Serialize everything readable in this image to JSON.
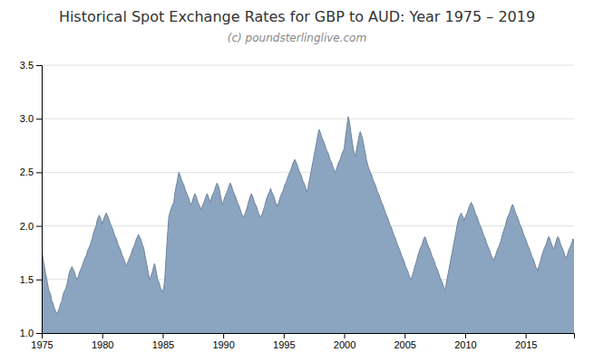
{
  "chart_data": {
    "type": "area",
    "title": "Historical Spot Exchange Rates for GBP to AUD: Year 1975 – 2019",
    "subtitle": "(c) poundsterlinglive.com",
    "color": "#8ba4c0",
    "grid": true,
    "xlim": [
      1975,
      2019
    ],
    "ylim": [
      1.0,
      3.5
    ],
    "xticks": [
      1975,
      1980,
      1985,
      1990,
      1995,
      2000,
      2005,
      2010,
      2015
    ],
    "yticks": [
      {
        "value": 1.0,
        "label": "1.0"
      },
      1.5,
      {
        "value": 2.0,
        "label": "2.0"
      },
      2.5,
      {
        "value": 3.0,
        "label": "3.0"
      },
      3.5
    ],
    "x": [
      1975.0,
      1975.08,
      1975.17,
      1975.25,
      1975.33,
      1975.42,
      1975.5,
      1975.58,
      1975.67,
      1975.75,
      1975.83,
      1975.92,
      1976.0,
      1976.08,
      1976.17,
      1976.25,
      1976.33,
      1976.42,
      1976.5,
      1976.58,
      1976.67,
      1976.75,
      1976.83,
      1976.92,
      1977.0,
      1977.08,
      1977.17,
      1977.25,
      1977.33,
      1977.42,
      1977.5,
      1977.58,
      1977.67,
      1977.75,
      1977.83,
      1977.92,
      1978.0,
      1978.08,
      1978.17,
      1978.25,
      1978.33,
      1978.42,
      1978.5,
      1978.58,
      1978.67,
      1978.75,
      1978.83,
      1978.92,
      1979.0,
      1979.08,
      1979.17,
      1979.25,
      1979.33,
      1979.42,
      1979.5,
      1979.58,
      1979.67,
      1979.75,
      1979.83,
      1979.92,
      1980.0,
      1980.08,
      1980.17,
      1980.25,
      1980.33,
      1980.42,
      1980.5,
      1980.58,
      1980.67,
      1980.75,
      1980.83,
      1980.92,
      1981.0,
      1981.08,
      1981.17,
      1981.25,
      1981.33,
      1981.42,
      1981.5,
      1981.58,
      1981.67,
      1981.75,
      1981.83,
      1981.92,
      1982.0,
      1982.08,
      1982.17,
      1982.25,
      1982.33,
      1982.42,
      1982.5,
      1982.58,
      1982.67,
      1982.75,
      1982.83,
      1982.92,
      1983.0,
      1983.08,
      1983.17,
      1983.25,
      1983.33,
      1983.42,
      1983.5,
      1983.58,
      1983.67,
      1983.75,
      1983.83,
      1983.92,
      1984.0,
      1984.08,
      1984.17,
      1984.25,
      1984.33,
      1984.42,
      1984.5,
      1984.58,
      1984.67,
      1984.75,
      1984.83,
      1984.92,
      1985.0,
      1985.08,
      1985.17,
      1985.25,
      1985.33,
      1985.42,
      1985.5,
      1985.58,
      1985.67,
      1985.75,
      1985.83,
      1985.92,
      1986.0,
      1986.08,
      1986.17,
      1986.25,
      1986.33,
      1986.42,
      1986.5,
      1986.58,
      1986.67,
      1986.75,
      1986.83,
      1986.92,
      1987.0,
      1987.08,
      1987.17,
      1987.25,
      1987.33,
      1987.42,
      1987.5,
      1987.58,
      1987.67,
      1987.75,
      1987.83,
      1987.92,
      1988.0,
      1988.08,
      1988.17,
      1988.25,
      1988.33,
      1988.42,
      1988.5,
      1988.58,
      1988.67,
      1988.75,
      1988.83,
      1988.92,
      1989.0,
      1989.08,
      1989.17,
      1989.25,
      1989.33,
      1989.42,
      1989.5,
      1989.58,
      1989.67,
      1989.75,
      1989.83,
      1989.92,
      1990.0,
      1990.08,
      1990.17,
      1990.25,
      1990.33,
      1990.42,
      1990.5,
      1990.58,
      1990.67,
      1990.75,
      1990.83,
      1990.92,
      1991.0,
      1991.08,
      1991.17,
      1991.25,
      1991.33,
      1991.42,
      1991.5,
      1991.58,
      1991.67,
      1991.75,
      1991.83,
      1991.92,
      1992.0,
      1992.08,
      1992.17,
      1992.25,
      1992.33,
      1992.42,
      1992.5,
      1992.58,
      1992.67,
      1992.75,
      1992.83,
      1992.92,
      1993.0,
      1993.08,
      1993.17,
      1993.25,
      1993.33,
      1993.42,
      1993.5,
      1993.58,
      1993.67,
      1993.75,
      1993.83,
      1993.92,
      1994.0,
      1994.08,
      1994.17,
      1994.25,
      1994.33,
      1994.42,
      1994.5,
      1994.58,
      1994.67,
      1994.75,
      1994.83,
      1994.92,
      1995.0,
      1995.08,
      1995.17,
      1995.25,
      1995.33,
      1995.42,
      1995.5,
      1995.58,
      1995.67,
      1995.75,
      1995.83,
      1995.92,
      1996.0,
      1996.08,
      1996.17,
      1996.25,
      1996.33,
      1996.42,
      1996.5,
      1996.58,
      1996.67,
      1996.75,
      1996.83,
      1996.92,
      1997.0,
      1997.08,
      1997.17,
      1997.25,
      1997.33,
      1997.42,
      1997.5,
      1997.58,
      1997.67,
      1997.75,
      1997.83,
      1997.92,
      1998.0,
      1998.08,
      1998.17,
      1998.25,
      1998.33,
      1998.42,
      1998.5,
      1998.58,
      1998.67,
      1998.75,
      1998.83,
      1998.92,
      1999.0,
      1999.08,
      1999.17,
      1999.25,
      1999.33,
      1999.42,
      1999.5,
      1999.58,
      1999.67,
      1999.75,
      1999.83,
      1999.92,
      2000.0,
      2000.08,
      2000.17,
      2000.25,
      2000.33,
      2000.42,
      2000.5,
      2000.58,
      2000.67,
      2000.75,
      2000.83,
      2000.92,
      2001.0,
      2001.08,
      2001.17,
      2001.25,
      2001.33,
      2001.42,
      2001.5,
      2001.58,
      2001.67,
      2001.75,
      2001.83,
      2001.92,
      2002.0,
      2002.08,
      2002.17,
      2002.25,
      2002.33,
      2002.42,
      2002.5,
      2002.58,
      2002.67,
      2002.75,
      2002.83,
      2002.92,
      2003.0,
      2003.08,
      2003.17,
      2003.25,
      2003.33,
      2003.42,
      2003.5,
      2003.58,
      2003.67,
      2003.75,
      2003.83,
      2003.92,
      2004.0,
      2004.08,
      2004.17,
      2004.25,
      2004.33,
      2004.42,
      2004.5,
      2004.58,
      2004.67,
      2004.75,
      2004.83,
      2004.92,
      2005.0,
      2005.08,
      2005.17,
      2005.25,
      2005.33,
      2005.42,
      2005.5,
      2005.58,
      2005.67,
      2005.75,
      2005.83,
      2005.92,
      2006.0,
      2006.08,
      2006.17,
      2006.25,
      2006.33,
      2006.42,
      2006.5,
      2006.58,
      2006.67,
      2006.75,
      2006.83,
      2006.92,
      2007.0,
      2007.08,
      2007.17,
      2007.25,
      2007.33,
      2007.42,
      2007.5,
      2007.58,
      2007.67,
      2007.75,
      2007.83,
      2007.92,
      2008.0,
      2008.08,
      2008.17,
      2008.25,
      2008.33,
      2008.42,
      2008.5,
      2008.58,
      2008.67,
      2008.75,
      2008.83,
      2008.92,
      2009.0,
      2009.08,
      2009.17,
      2009.25,
      2009.33,
      2009.42,
      2009.5,
      2009.58,
      2009.67,
      2009.75,
      2009.83,
      2009.92,
      2010.0,
      2010.08,
      2010.17,
      2010.25,
      2010.33,
      2010.42,
      2010.5,
      2010.58,
      2010.67,
      2010.75,
      2010.83,
      2010.92,
      2011.0,
      2011.08,
      2011.17,
      2011.25,
      2011.33,
      2011.42,
      2011.5,
      2011.58,
      2011.67,
      2011.75,
      2011.83,
      2011.92,
      2012.0,
      2012.08,
      2012.17,
      2012.25,
      2012.33,
      2012.42,
      2012.5,
      2012.58,
      2012.67,
      2012.75,
      2012.83,
      2012.92,
      2013.0,
      2013.08,
      2013.17,
      2013.25,
      2013.33,
      2013.42,
      2013.5,
      2013.58,
      2013.67,
      2013.75,
      2013.83,
      2013.92,
      2014.0,
      2014.08,
      2014.17,
      2014.25,
      2014.33,
      2014.42,
      2014.5,
      2014.58,
      2014.67,
      2014.75,
      2014.83,
      2014.92,
      2015.0,
      2015.08,
      2015.17,
      2015.25,
      2015.33,
      2015.42,
      2015.5,
      2015.58,
      2015.67,
      2015.75,
      2015.83,
      2015.92,
      2016.0,
      2016.08,
      2016.17,
      2016.25,
      2016.33,
      2016.42,
      2016.5,
      2016.58,
      2016.67,
      2016.75,
      2016.83,
      2016.92,
      2017.0,
      2017.08,
      2017.17,
      2017.25,
      2017.33,
      2017.42,
      2017.5,
      2017.58,
      2017.67,
      2017.75,
      2017.83,
      2017.92,
      2018.0,
      2018.08,
      2018.17,
      2018.25,
      2018.33,
      2018.42,
      2018.5,
      2018.58,
      2018.67,
      2018.75,
      2018.83,
      2018.92,
      2019.0
    ],
    "values": [
      1.78,
      1.72,
      1.65,
      1.6,
      1.55,
      1.5,
      1.45,
      1.4,
      1.38,
      1.35,
      1.3,
      1.28,
      1.25,
      1.22,
      1.2,
      1.18,
      1.2,
      1.22,
      1.25,
      1.28,
      1.3,
      1.35,
      1.38,
      1.4,
      1.42,
      1.45,
      1.5,
      1.55,
      1.58,
      1.6,
      1.62,
      1.6,
      1.58,
      1.55,
      1.52,
      1.5,
      1.52,
      1.55,
      1.58,
      1.6,
      1.62,
      1.65,
      1.68,
      1.7,
      1.72,
      1.75,
      1.78,
      1.8,
      1.82,
      1.85,
      1.88,
      1.92,
      1.95,
      1.98,
      2.0,
      2.05,
      2.08,
      2.1,
      2.08,
      2.05,
      2.02,
      2.05,
      2.08,
      2.1,
      2.12,
      2.1,
      2.08,
      2.05,
      2.02,
      2.0,
      1.98,
      1.95,
      1.92,
      1.9,
      1.88,
      1.85,
      1.82,
      1.8,
      1.78,
      1.75,
      1.72,
      1.7,
      1.68,
      1.65,
      1.62,
      1.65,
      1.68,
      1.7,
      1.72,
      1.75,
      1.78,
      1.8,
      1.82,
      1.85,
      1.88,
      1.9,
      1.92,
      1.9,
      1.88,
      1.85,
      1.82,
      1.8,
      1.75,
      1.7,
      1.65,
      1.6,
      1.55,
      1.5,
      1.52,
      1.55,
      1.58,
      1.62,
      1.65,
      1.6,
      1.55,
      1.5,
      1.48,
      1.45,
      1.42,
      1.4,
      1.38,
      1.42,
      1.5,
      1.65,
      1.8,
      1.95,
      2.08,
      2.12,
      2.15,
      2.18,
      2.2,
      2.22,
      2.3,
      2.35,
      2.4,
      2.45,
      2.5,
      2.48,
      2.45,
      2.42,
      2.4,
      2.38,
      2.35,
      2.32,
      2.3,
      2.28,
      2.25,
      2.22,
      2.2,
      2.22,
      2.25,
      2.28,
      2.3,
      2.28,
      2.25,
      2.22,
      2.2,
      2.18,
      2.15,
      2.18,
      2.2,
      2.22,
      2.25,
      2.28,
      2.3,
      2.28,
      2.25,
      2.22,
      2.25,
      2.28,
      2.3,
      2.32,
      2.35,
      2.38,
      2.4,
      2.38,
      2.35,
      2.3,
      2.25,
      2.2,
      2.22,
      2.25,
      2.28,
      2.3,
      2.32,
      2.35,
      2.38,
      2.4,
      2.38,
      2.35,
      2.32,
      2.3,
      2.28,
      2.25,
      2.22,
      2.2,
      2.18,
      2.15,
      2.12,
      2.1,
      2.08,
      2.1,
      2.12,
      2.15,
      2.18,
      2.22,
      2.25,
      2.28,
      2.3,
      2.28,
      2.25,
      2.22,
      2.2,
      2.18,
      2.15,
      2.12,
      2.1,
      2.08,
      2.1,
      2.12,
      2.15,
      2.18,
      2.22,
      2.25,
      2.28,
      2.3,
      2.32,
      2.35,
      2.32,
      2.3,
      2.28,
      2.25,
      2.22,
      2.2,
      2.18,
      2.22,
      2.25,
      2.28,
      2.3,
      2.32,
      2.35,
      2.38,
      2.4,
      2.42,
      2.45,
      2.48,
      2.5,
      2.52,
      2.55,
      2.58,
      2.6,
      2.62,
      2.6,
      2.58,
      2.55,
      2.52,
      2.5,
      2.48,
      2.45,
      2.42,
      2.4,
      2.38,
      2.35,
      2.32,
      2.35,
      2.4,
      2.45,
      2.5,
      2.55,
      2.6,
      2.65,
      2.7,
      2.75,
      2.8,
      2.85,
      2.9,
      2.88,
      2.85,
      2.82,
      2.8,
      2.78,
      2.75,
      2.72,
      2.7,
      2.68,
      2.65,
      2.62,
      2.6,
      2.58,
      2.55,
      2.52,
      2.5,
      2.52,
      2.55,
      2.58,
      2.6,
      2.62,
      2.65,
      2.68,
      2.7,
      2.72,
      2.8,
      2.88,
      2.95,
      3.02,
      2.98,
      2.92,
      2.85,
      2.78,
      2.72,
      2.68,
      2.65,
      2.7,
      2.75,
      2.8,
      2.85,
      2.88,
      2.85,
      2.82,
      2.78,
      2.72,
      2.68,
      2.62,
      2.58,
      2.55,
      2.52,
      2.5,
      2.48,
      2.45,
      2.42,
      2.4,
      2.38,
      2.35,
      2.32,
      2.3,
      2.28,
      2.25,
      2.22,
      2.2,
      2.18,
      2.15,
      2.12,
      2.1,
      2.08,
      2.05,
      2.02,
      2.0,
      1.98,
      1.95,
      1.92,
      1.9,
      1.88,
      1.85,
      1.82,
      1.8,
      1.78,
      1.75,
      1.72,
      1.7,
      1.68,
      1.65,
      1.62,
      1.6,
      1.58,
      1.55,
      1.52,
      1.5,
      1.52,
      1.55,
      1.58,
      1.62,
      1.65,
      1.68,
      1.72,
      1.75,
      1.78,
      1.8,
      1.82,
      1.85,
      1.88,
      1.9,
      1.88,
      1.85,
      1.82,
      1.8,
      1.78,
      1.75,
      1.72,
      1.7,
      1.68,
      1.65,
      1.62,
      1.6,
      1.58,
      1.55,
      1.52,
      1.5,
      1.48,
      1.45,
      1.42,
      1.4,
      1.45,
      1.5,
      1.55,
      1.6,
      1.65,
      1.7,
      1.75,
      1.8,
      1.85,
      1.9,
      1.95,
      2.0,
      2.05,
      2.08,
      2.1,
      2.12,
      2.1,
      2.08,
      2.05,
      2.08,
      2.1,
      2.12,
      2.15,
      2.18,
      2.2,
      2.22,
      2.2,
      2.18,
      2.15,
      2.12,
      2.1,
      2.08,
      2.05,
      2.02,
      2.0,
      1.98,
      1.95,
      1.92,
      1.9,
      1.88,
      1.85,
      1.82,
      1.8,
      1.78,
      1.75,
      1.72,
      1.7,
      1.68,
      1.7,
      1.72,
      1.75,
      1.78,
      1.8,
      1.82,
      1.85,
      1.88,
      1.92,
      1.95,
      1.98,
      2.0,
      2.05,
      2.08,
      2.1,
      2.12,
      2.15,
      2.18,
      2.2,
      2.18,
      2.15,
      2.12,
      2.1,
      2.08,
      2.05,
      2.02,
      2.0,
      1.98,
      1.95,
      1.92,
      1.9,
      1.88,
      1.85,
      1.82,
      1.8,
      1.78,
      1.75,
      1.72,
      1.7,
      1.68,
      1.65,
      1.62,
      1.6,
      1.58,
      1.62,
      1.65,
      1.68,
      1.72,
      1.75,
      1.78,
      1.8,
      1.82,
      1.85,
      1.88,
      1.9,
      1.88,
      1.85,
      1.82,
      1.8,
      1.78,
      1.82,
      1.85,
      1.88,
      1.9,
      1.88,
      1.85,
      1.82,
      1.8,
      1.78,
      1.75,
      1.72,
      1.7,
      1.72,
      1.75,
      1.78,
      1.8,
      1.82,
      1.85,
      1.88,
      1.85
    ]
  }
}
